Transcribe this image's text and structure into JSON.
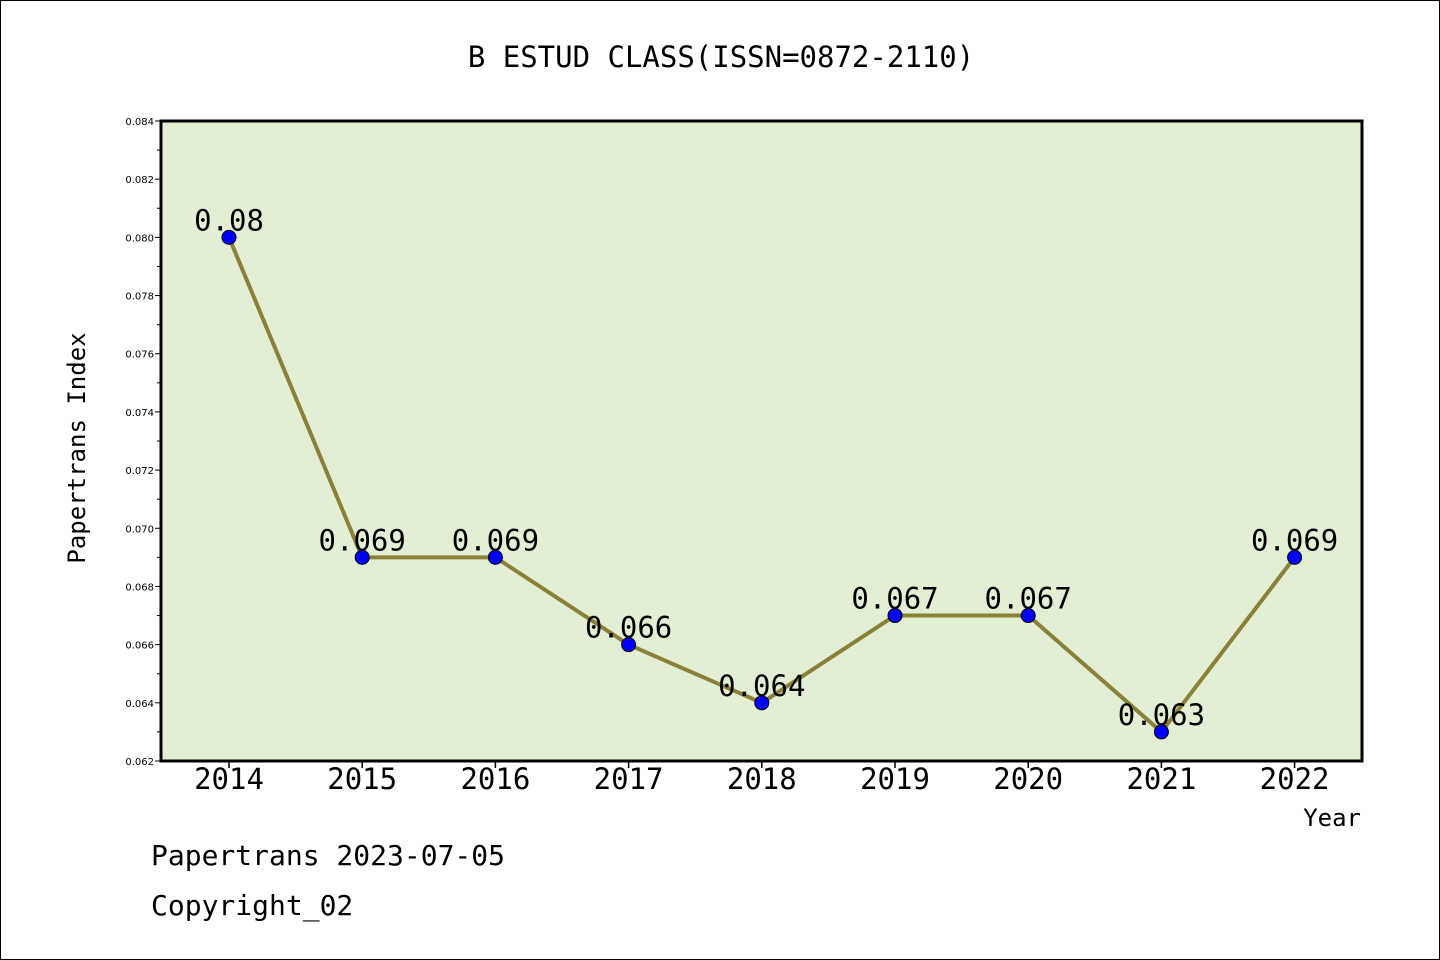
{
  "chart_data": {
    "type": "line",
    "title": "B ESTUD CLASS(ISSN=0872-2110)",
    "xlabel": "Year",
    "ylabel": "Papertrans Index",
    "x": [
      "2014",
      "2015",
      "2016",
      "2017",
      "2018",
      "2019",
      "2020",
      "2021",
      "2022"
    ],
    "values": [
      0.08,
      0.069,
      0.069,
      0.066,
      0.064,
      0.067,
      0.067,
      0.063,
      0.069
    ],
    "data_labels": [
      "0.08",
      "0.069",
      "0.069",
      "0.066",
      "0.064",
      "0.067",
      "0.067",
      "0.063",
      "0.069"
    ],
    "ylim": [
      0.062,
      0.084
    ],
    "yticks": [
      "0.062",
      "0.064",
      "0.066",
      "0.068",
      "0.070",
      "0.072",
      "0.074",
      "0.076",
      "0.078",
      "0.080",
      "0.082",
      "0.084"
    ],
    "grid": false,
    "colors": {
      "plot_background": "#e2efd5",
      "line": "#8b8038",
      "marker": "#0000ff"
    }
  },
  "footer": {
    "line1": "Papertrans 2023-07-05",
    "line2": "Copyright_02"
  }
}
